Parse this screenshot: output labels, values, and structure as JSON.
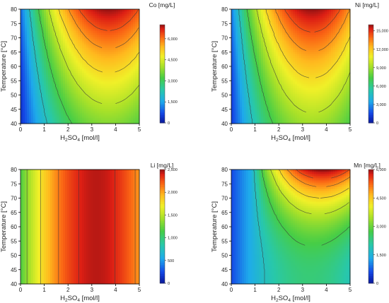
{
  "chart_data": [
    {
      "type": "heatmap",
      "title": "",
      "colorbar_label": "Co [mg/L]",
      "colorbar_ticks": [
        "0",
        "1,500",
        "3,000",
        "4,500",
        "6,000"
      ],
      "colorbar_range": [
        0,
        7000
      ],
      "xlabel_main": "H",
      "xlabel_sub": "2",
      "xlabel_rest": "SO",
      "xlabel_sub2": "4",
      "xlabel_unit": " [mol/l]",
      "ylabel": "Temperature [°C]",
      "xticks": [
        "0",
        "1",
        "2",
        "3",
        "4",
        "5"
      ],
      "yticks": [
        "40",
        "45",
        "50",
        "55",
        "60",
        "65",
        "70",
        "75",
        "80"
      ],
      "xlim": [
        0,
        5
      ],
      "ylim": [
        40,
        80
      ],
      "max_location": {
        "x": 3.8,
        "y": 80
      },
      "contour_shape": "u-shaped curves opening upward, minimum near x 3.6"
    },
    {
      "type": "heatmap",
      "title": "",
      "colorbar_label": "Ni [mg/L]",
      "colorbar_ticks": [
        "0",
        "3,000",
        "6,000",
        "9,000",
        "12,000",
        "15,000"
      ],
      "colorbar_range": [
        0,
        16000
      ],
      "xlabel_main": "H",
      "xlabel_sub": "2",
      "xlabel_rest": "SO",
      "xlabel_sub2": "4",
      "xlabel_unit": " [mol/l]",
      "ylabel": "Temperature [°C]",
      "xticks": [
        "0",
        "1",
        "2",
        "3",
        "4",
        "5"
      ],
      "yticks": [
        "40",
        "45",
        "50",
        "55",
        "60",
        "65",
        "70",
        "75",
        "80"
      ],
      "xlim": [
        0,
        5
      ],
      "ylim": [
        40,
        80
      ],
      "max_location": {
        "x": 3.5,
        "y": 80
      },
      "contour_shape": "u-shaped curves opening upward, minimum near x 3.4"
    },
    {
      "type": "heatmap",
      "title": "",
      "colorbar_label": "Li [mg/L]",
      "colorbar_ticks": [
        "0",
        "500",
        "1,000",
        "1,500",
        "2,000",
        "2,500"
      ],
      "colorbar_range": [
        0,
        2500
      ],
      "xlabel_main": "H",
      "xlabel_sub": "2",
      "xlabel_rest": "SO",
      "xlabel_sub2": "4",
      "xlabel_unit": " [mol/l]",
      "ylabel": "Temperature [°C]",
      "xticks": [
        "0",
        "1",
        "2",
        "3",
        "4",
        "5"
      ],
      "yticks": [
        "40",
        "45",
        "50",
        "55",
        "60",
        "65",
        "70",
        "75",
        "80"
      ],
      "xlim": [
        0,
        5
      ],
      "ylim": [
        40,
        80
      ],
      "max_location": {
        "x": 3.4,
        "y": 60
      },
      "contour_shape": "vertical bands, concentration depends on acid only"
    },
    {
      "type": "heatmap",
      "title": "",
      "colorbar_label": "Mn [mg/L]",
      "colorbar_ticks": [
        "0",
        "1,500",
        "3,000",
        "4,500",
        "6,000"
      ],
      "colorbar_range": [
        0,
        6000
      ],
      "xlabel_main": "H",
      "xlabel_sub": "2",
      "xlabel_rest": "SO",
      "xlabel_sub2": "4",
      "xlabel_unit": " [mol/l]",
      "ylabel": "Temperature [°C]",
      "xticks": [
        "0",
        "1",
        "2",
        "3",
        "4",
        "5"
      ],
      "yticks": [
        "40",
        "45",
        "50",
        "55",
        "60",
        "65",
        "70",
        "75",
        "80"
      ],
      "xlim": [
        0,
        5
      ],
      "ylim": [
        40,
        80
      ],
      "max_location": {
        "x": 4.2,
        "y": 80
      },
      "contour_shape": "u-shaped curves opening upward, minimum near x 3.3, strongest at high temperature"
    }
  ]
}
